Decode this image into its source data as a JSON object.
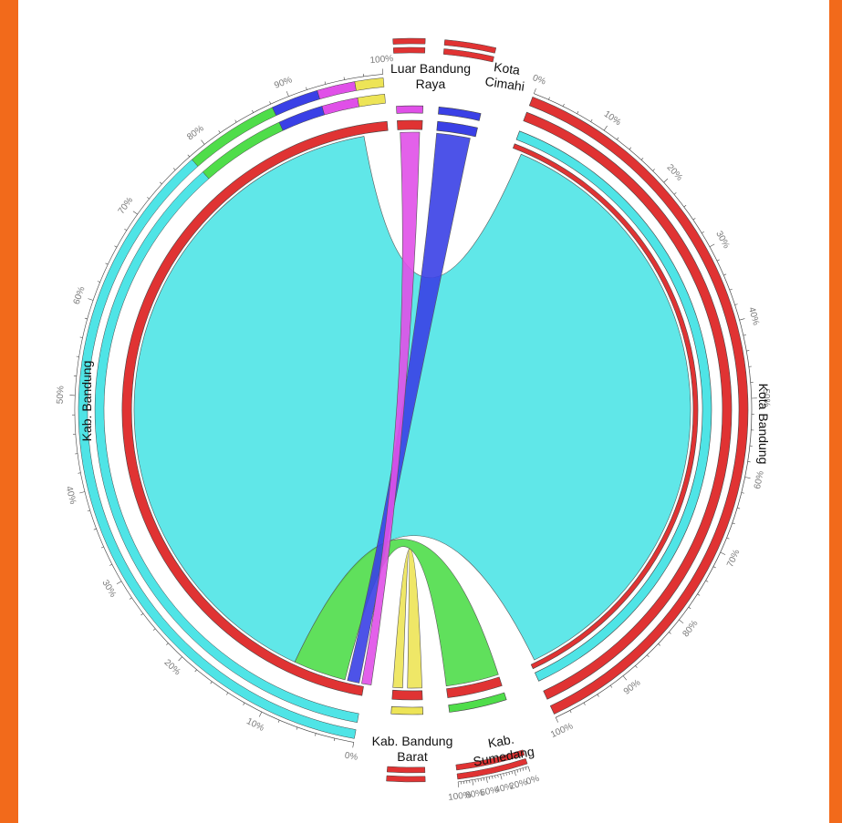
{
  "diagram": {
    "type": "chord",
    "colors": {
      "frame": "#f26a1b",
      "background": "#ffffff",
      "kab_bandung": "#4fe4e6",
      "kota_bandung": "#e03333",
      "luar_bandung_raya": "#e050e8",
      "kota_cimahi": "#3a40e6",
      "kab_bandung_barat": "#ede457",
      "kab_sumedang": "#4fdd4a"
    },
    "regions": [
      {
        "key": "kab_bandung",
        "label_lines": [
          "Kab. Bandung"
        ]
      },
      {
        "key": "kota_bandung",
        "label_lines": [
          "Kota Bandung"
        ]
      },
      {
        "key": "luar_bandung_raya",
        "label_lines": [
          "Luar Bandung",
          "Raya"
        ]
      },
      {
        "key": "kota_cimahi",
        "label_lines": [
          "Kota",
          "Cimahi"
        ]
      },
      {
        "key": "kab_bandung_barat",
        "label_lines": [
          "Kab. Bandung",
          "Barat"
        ]
      },
      {
        "key": "kab_sumedang",
        "label_lines": [
          "Kab.",
          "Sumedang"
        ]
      }
    ],
    "scales": {
      "kab_bandung": [
        "0%",
        "10%",
        "20%",
        "30%",
        "40%",
        "50%",
        "60%",
        "70%",
        "80%",
        "90%",
        "100%"
      ],
      "kota_bandung": [
        "0%",
        "10%",
        "20%",
        "30%",
        "40%",
        "50%",
        "60%",
        "70%",
        "80%",
        "90%",
        "100%"
      ],
      "kab_sumedang": [
        "0%",
        "20%",
        "40%",
        "60%",
        "80%",
        "100%"
      ]
    },
    "flows": [
      {
        "from": "kab_bandung",
        "to": "kota_bandung",
        "share": 0.78
      },
      {
        "from": "kab_bandung",
        "to": "kab_sumedang",
        "share": 0.07
      },
      {
        "from": "kab_bandung",
        "to": "kota_cimahi",
        "share": 0.03
      },
      {
        "from": "kab_bandung",
        "to": "luar_bandung_raya",
        "share": 0.03
      },
      {
        "from": "kab_bandung",
        "to": "kab_bandung_barat",
        "share": 0.03
      },
      {
        "from": "kab_bandung",
        "to": "kab_bandung",
        "share": 0.06
      }
    ]
  }
}
